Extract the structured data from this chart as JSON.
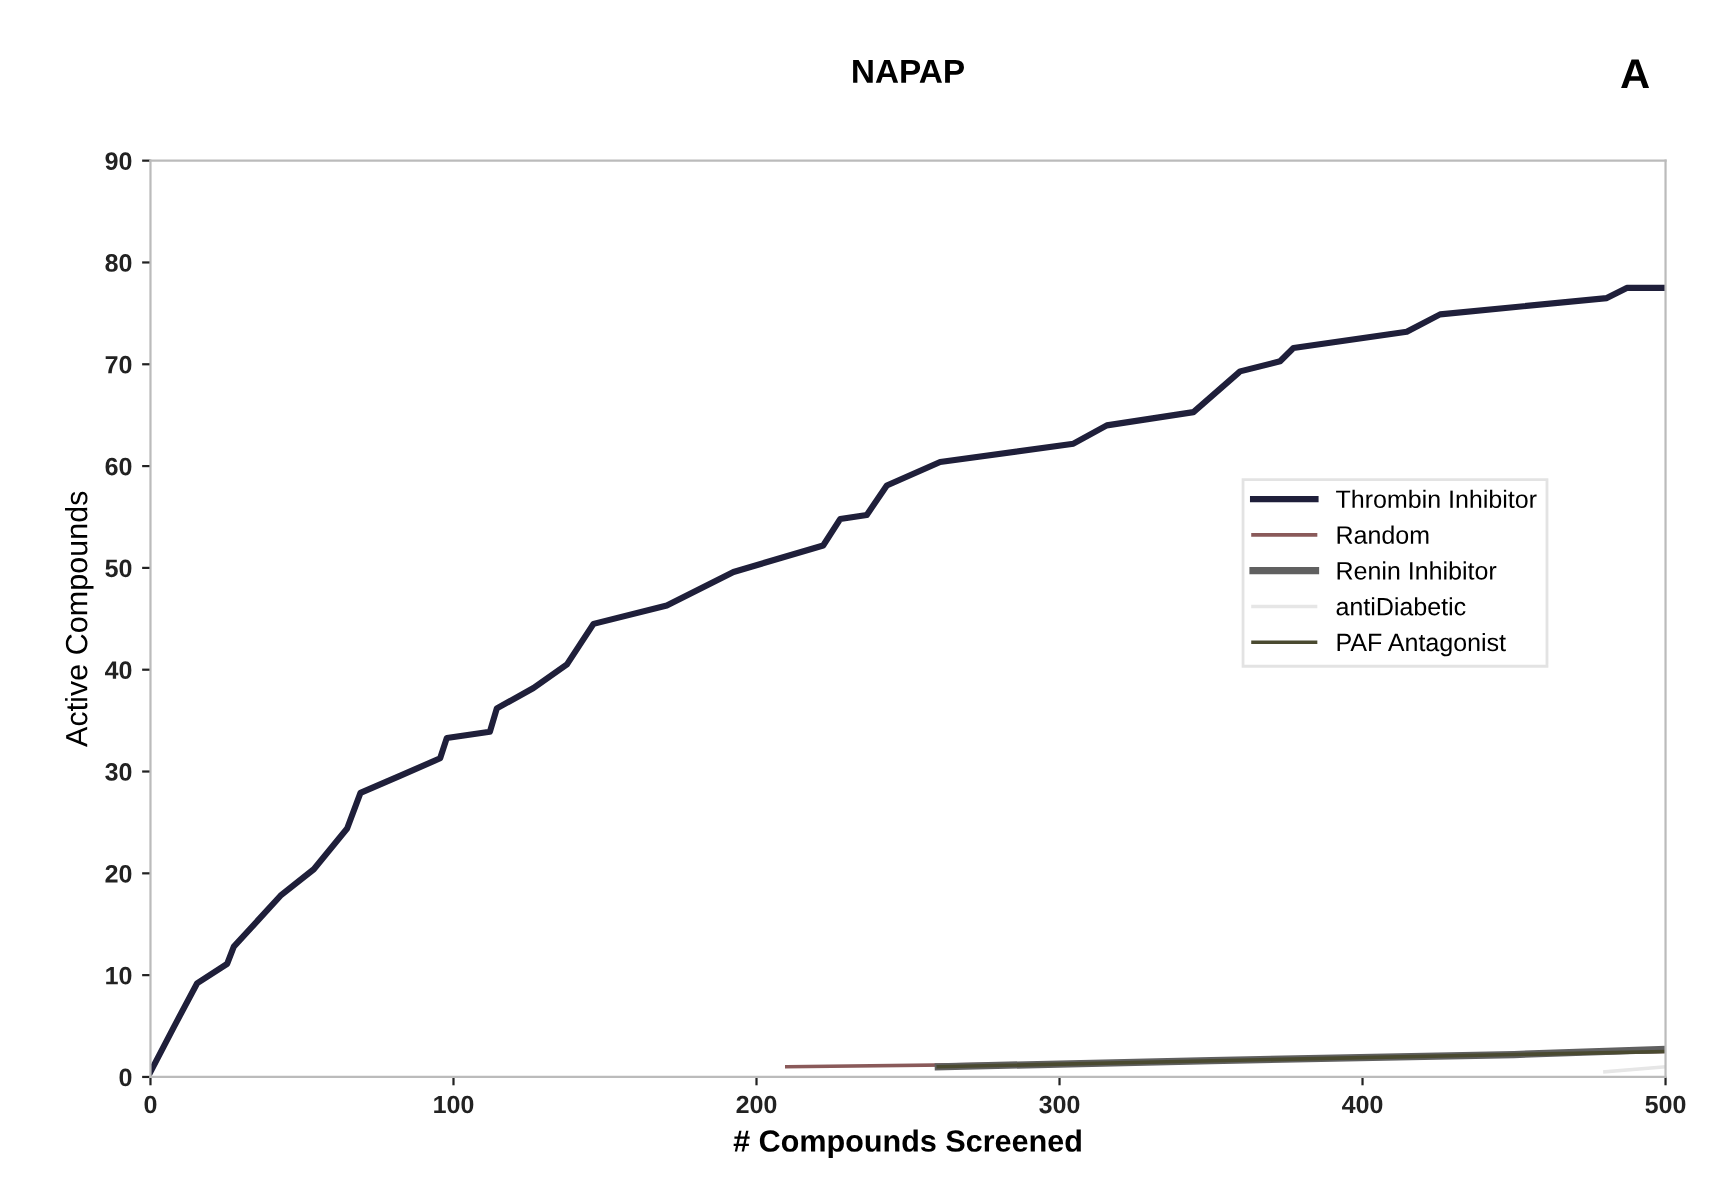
{
  "chart_data": {
    "type": "line",
    "title": "NAPAP",
    "xlabel": "# Compounds Screened",
    "ylabel": "Active Compounds",
    "annotations": [
      "A"
    ],
    "xlim": [
      0,
      500
    ],
    "xticks": [
      0,
      100,
      200,
      300,
      400,
      500
    ],
    "ylim": [
      0,
      90
    ],
    "yticks": [
      0,
      10,
      20,
      30,
      40,
      50,
      60,
      70,
      80,
      90
    ],
    "grid": false,
    "legend": "right",
    "marker": "none",
    "line_style": "solid",
    "series": [
      {
        "name": "Thrombin Inhibitor",
        "color": "#1f1f3a",
        "x": [
          0,
          7.7,
          15.4,
          25.3,
          27.5,
          42.9,
          53.9,
          64.9,
          69.3,
          82.5,
          95.6,
          97.8,
          112,
          114.3,
          126.4,
          137.4,
          146.2,
          170.4,
          192.4,
          222,
          227.6,
          236.4,
          243,
          260.6,
          304.6,
          315.6,
          344.2,
          359.6,
          372.8,
          377.2,
          414.6,
          425.6,
          480.6,
          487.2,
          499
        ],
        "values": [
          0.5,
          4.9,
          9.2,
          11.1,
          12.8,
          17.8,
          20.4,
          24.4,
          27.9,
          29.6,
          31.3,
          33.3,
          33.9,
          36.2,
          38.2,
          40.5,
          44.5,
          46.3,
          49.6,
          52.2,
          54.8,
          55.2,
          58.1,
          60.4,
          62.2,
          64.0,
          65.3,
          69.3,
          70.3,
          71.6,
          73.2,
          74.9,
          76.5,
          77.5,
          77.5
        ]
      },
      {
        "name": "Random",
        "color": "#8a5a5a",
        "x": [
          210,
          300,
          400,
          500
        ],
        "values": [
          1,
          1.3,
          2,
          2.5
        ]
      },
      {
        "name": "Renin Inhibitor",
        "color": "#606060",
        "x": [
          260,
          350,
          450,
          500
        ],
        "values": [
          1,
          1.6,
          2.2,
          2.7
        ]
      },
      {
        "name": "antiDiabetic",
        "color": "#e6e6e6",
        "x": [
          480,
          500
        ],
        "values": [
          0.5,
          1
        ]
      },
      {
        "name": "PAF Antagonist",
        "color": "#4a4a30",
        "x": [
          260,
          400,
          500
        ],
        "values": [
          1,
          1.9,
          2.5
        ]
      }
    ]
  }
}
